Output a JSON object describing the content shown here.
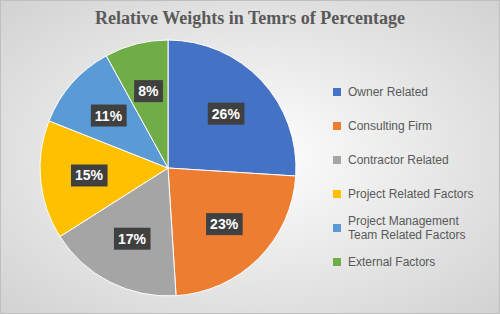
{
  "chart_data": {
    "type": "pie",
    "title": "Relative Weights in Temrs of Percentage",
    "categories": [
      "Owner Related",
      "Consulting Firm",
      "Contractor Related",
      "Project Related Factors",
      "Project Management Team Related Factors",
      "External Factors"
    ],
    "values": [
      26,
      23,
      17,
      15,
      11,
      8
    ],
    "value_labels": [
      "26%",
      "23%",
      "17%",
      "15%",
      "11%",
      "8%"
    ],
    "colors": [
      "#4472c4",
      "#ed7d31",
      "#a5a5a5",
      "#ffc000",
      "#5b9bd5",
      "#70ad47"
    ],
    "data_labels": true,
    "legend": "right"
  }
}
